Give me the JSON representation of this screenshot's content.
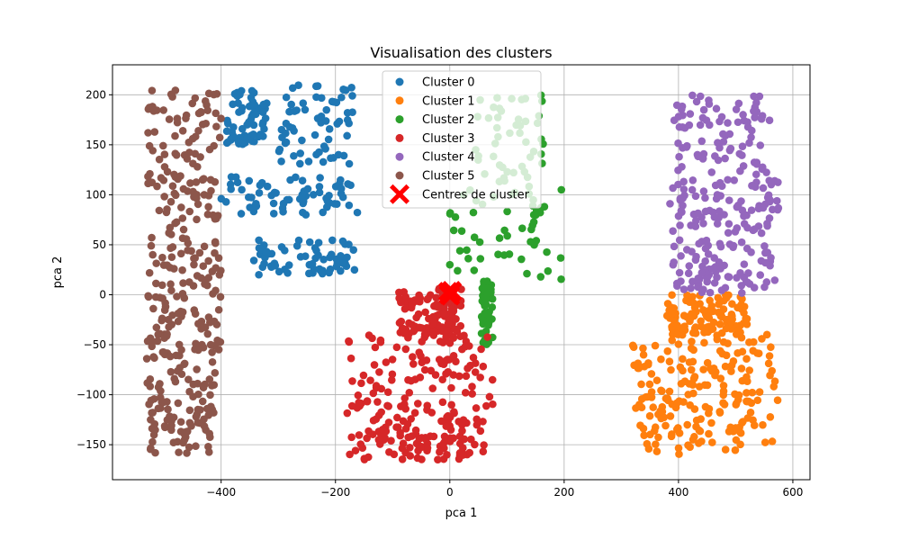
{
  "chart_data": {
    "type": "scatter",
    "title": "Visualisation des clusters",
    "xlabel": "pca 1",
    "ylabel": "pca 2",
    "xlim": [
      -590,
      630
    ],
    "ylim": [
      -185,
      230
    ],
    "x_ticks": [
      -400,
      -200,
      0,
      200,
      400,
      600
    ],
    "x_tick_labels": [
      "−400",
      "−200",
      "0",
      "200",
      "400",
      "600"
    ],
    "y_ticks": [
      -150,
      -100,
      -50,
      0,
      50,
      100,
      150,
      200
    ],
    "y_tick_labels": [
      "−150",
      "−100",
      "−50",
      "0",
      "50",
      "100",
      "150",
      "200"
    ],
    "grid": true,
    "legend_position": "top-center",
    "series": [
      {
        "name": "Cluster 0",
        "color": "#1f77b4",
        "x_range": [
          -400,
          -160
        ],
        "y_range": [
          20,
          210
        ],
        "bands": [
          [
            -400,
            -160,
            80,
            118
          ],
          [
            -345,
            -165,
            20,
            55
          ],
          [
            -300,
            -170,
            130,
            210
          ],
          [
            -390,
            -320,
            150,
            205
          ]
        ],
        "count": 260
      },
      {
        "name": "Cluster 1",
        "color": "#ff7f0e",
        "x_range": [
          320,
          580
        ],
        "y_range": [
          -170,
          0
        ],
        "bands": [
          [
            320,
            580,
            -100,
            -35
          ],
          [
            325,
            575,
            -160,
            -100
          ],
          [
            380,
            520,
            -40,
            0
          ]
        ],
        "count": 300
      },
      {
        "name": "Cluster 2",
        "color": "#2ca02c",
        "x_range": [
          0,
          200
        ],
        "y_range": [
          -50,
          200
        ],
        "bands": [
          [
            0,
            200,
            15,
            105
          ],
          [
            45,
            170,
            100,
            200
          ],
          [
            55,
            75,
            -50,
            15
          ]
        ],
        "count": 150
      },
      {
        "name": "Cluster 3",
        "color": "#d62728",
        "x_range": [
          -180,
          75
        ],
        "y_range": [
          -165,
          10
        ],
        "bands": [
          [
            -180,
            75,
            -120,
            -40
          ],
          [
            -180,
            60,
            -165,
            -120
          ],
          [
            -90,
            20,
            -45,
            10
          ]
        ],
        "count": 330
      },
      {
        "name": "Cluster 4",
        "color": "#9467bd",
        "x_range": [
          385,
          575
        ],
        "y_range": [
          0,
          200
        ],
        "bands": [
          [
            385,
            575,
            60,
            115
          ],
          [
            390,
            570,
            0,
            55
          ],
          [
            390,
            560,
            120,
            200
          ]
        ],
        "count": 250
      },
      {
        "name": "Cluster 5",
        "color": "#8c564b",
        "x_range": [
          -530,
          -400
        ],
        "y_range": [
          -160,
          205
        ],
        "bands": [
          [
            -530,
            -400,
            60,
            205
          ],
          [
            -530,
            -400,
            -55,
            60
          ],
          [
            -530,
            -410,
            -160,
            -55
          ]
        ],
        "count": 330
      }
    ],
    "centers": {
      "name": "Centres de cluster",
      "color": "#ff0000",
      "marker": "X",
      "points": [
        [
          0,
          2
        ],
        [
          3,
          4
        ],
        [
          -2,
          0
        ],
        [
          1,
          -1
        ],
        [
          4,
          3
        ],
        [
          -3,
          3
        ]
      ]
    }
  }
}
